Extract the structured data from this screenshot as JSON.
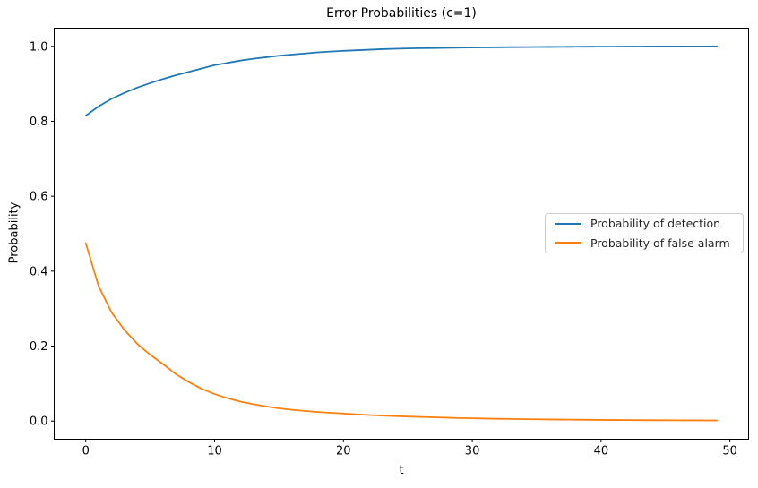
{
  "chart_data": {
    "type": "line",
    "title": "Error Probabilities (c=1)",
    "xlabel": "t",
    "ylabel": "Probability",
    "xlim": [
      -2.45,
      51.45
    ],
    "ylim": [
      -0.0485,
      1.0485
    ],
    "xticks": [
      0,
      10,
      20,
      30,
      40,
      50
    ],
    "xtick_labels": [
      "0",
      "10",
      "20",
      "30",
      "40",
      "50"
    ],
    "yticks": [
      0.0,
      0.2,
      0.4,
      0.6,
      0.8,
      1.0
    ],
    "ytick_labels": [
      "0.0",
      "0.2",
      "0.4",
      "0.6",
      "0.8",
      "1.0"
    ],
    "grid": false,
    "legend_position": "center right",
    "axis_color": "#000000",
    "background_color": "#ffffff",
    "x": [
      0,
      1,
      2,
      3,
      4,
      5,
      6,
      7,
      8,
      9,
      10,
      11,
      12,
      13,
      14,
      15,
      16,
      17,
      18,
      19,
      20,
      21,
      22,
      23,
      24,
      25,
      26,
      27,
      28,
      29,
      30,
      31,
      32,
      33,
      34,
      35,
      36,
      37,
      38,
      39,
      40,
      41,
      42,
      43,
      44,
      45,
      46,
      47,
      48,
      49
    ],
    "series": [
      {
        "name": "Probability of detection",
        "color": "#1f77b4",
        "values": [
          0.815,
          0.84,
          0.86,
          0.876,
          0.89,
          0.902,
          0.913,
          0.923,
          0.932,
          0.941,
          0.95,
          0.956,
          0.962,
          0.967,
          0.971,
          0.975,
          0.978,
          0.981,
          0.984,
          0.986,
          0.988,
          0.9895,
          0.991,
          0.9925,
          0.9935,
          0.9945,
          0.995,
          0.9955,
          0.996,
          0.9965,
          0.997,
          0.9973,
          0.9976,
          0.9979,
          0.9981,
          0.9983,
          0.9985,
          0.9987,
          0.9989,
          0.999,
          0.9992,
          0.9993,
          0.9994,
          0.9995,
          0.9996,
          0.9997,
          0.9997,
          0.9998,
          0.9998,
          0.9999
        ]
      },
      {
        "name": "Probability of false alarm",
        "color": "#ff7f0e",
        "values": [
          0.475,
          0.36,
          0.29,
          0.243,
          0.206,
          0.177,
          0.152,
          0.125,
          0.104,
          0.086,
          0.072,
          0.061,
          0.052,
          0.045,
          0.039,
          0.034,
          0.03,
          0.027,
          0.024,
          0.022,
          0.02,
          0.018,
          0.016,
          0.0145,
          0.013,
          0.012,
          0.011,
          0.01,
          0.009,
          0.008,
          0.0073,
          0.0066,
          0.006,
          0.0055,
          0.005,
          0.0046,
          0.0042,
          0.0039,
          0.0036,
          0.0033,
          0.003,
          0.0028,
          0.0026,
          0.0024,
          0.0022,
          0.0021,
          0.0019,
          0.0018,
          0.0017,
          0.0016
        ]
      }
    ]
  }
}
